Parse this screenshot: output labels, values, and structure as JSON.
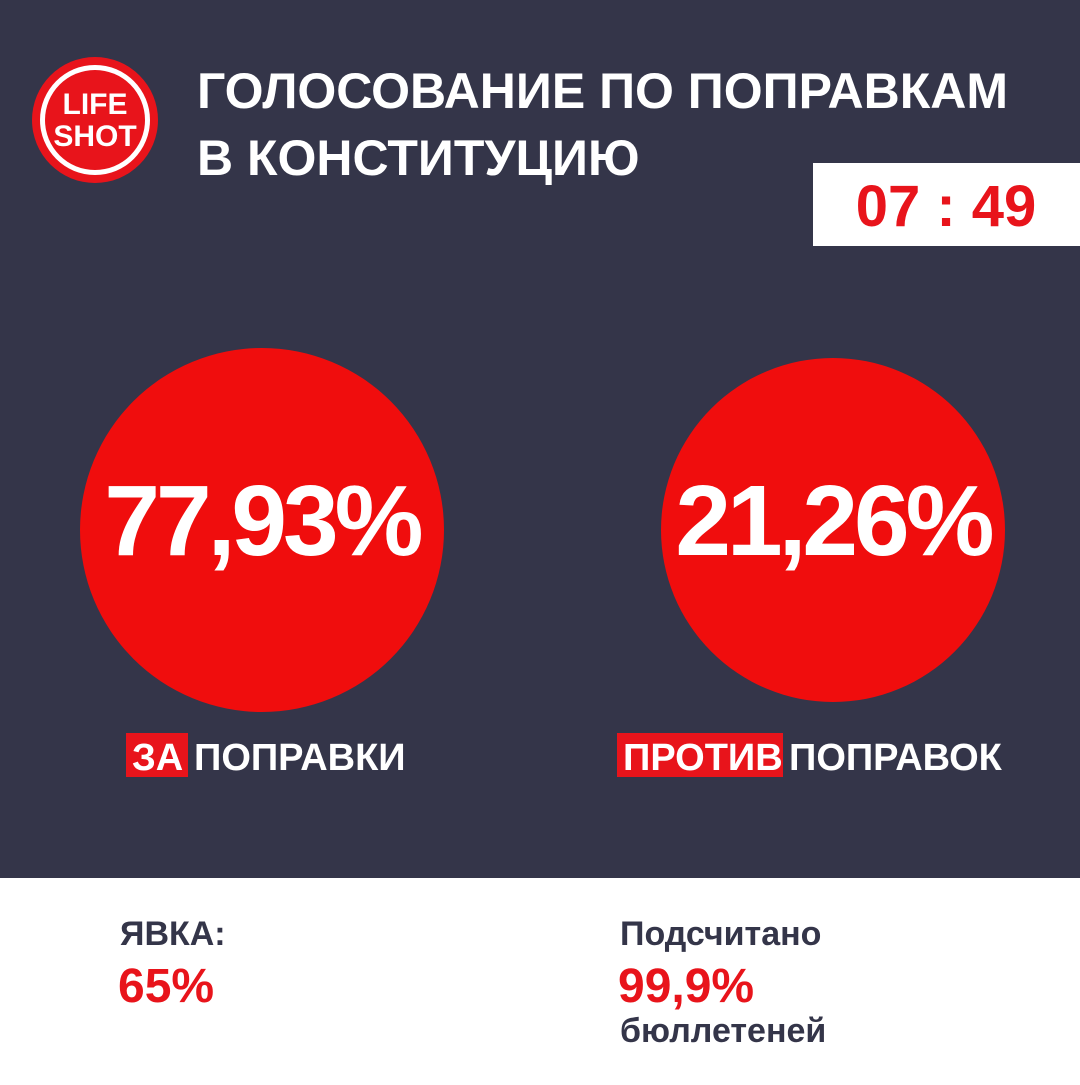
{
  "logo": {
    "line1": "LIFE",
    "line2": "SHOT"
  },
  "header": {
    "title_line1": "ГОЛОСОВАНИЕ ПО ПОПРАВКАМ",
    "title_line2": "В КОНСТИТУЦИЮ",
    "time": "07 : 49"
  },
  "results": [
    {
      "value": "77,93%",
      "highlight": "ЗА",
      "label": "ПОПРАВКИ"
    },
    {
      "value": "21,26%",
      "highlight": "ПРОТИВ",
      "label": "ПОПРАВОК"
    }
  ],
  "footer": {
    "turnout_label": "ЯВКА:",
    "turnout_value": "65%",
    "counted_label": "Подсчитано",
    "counted_value": "99,9%",
    "counted_unit": "бюллетеней"
  }
}
